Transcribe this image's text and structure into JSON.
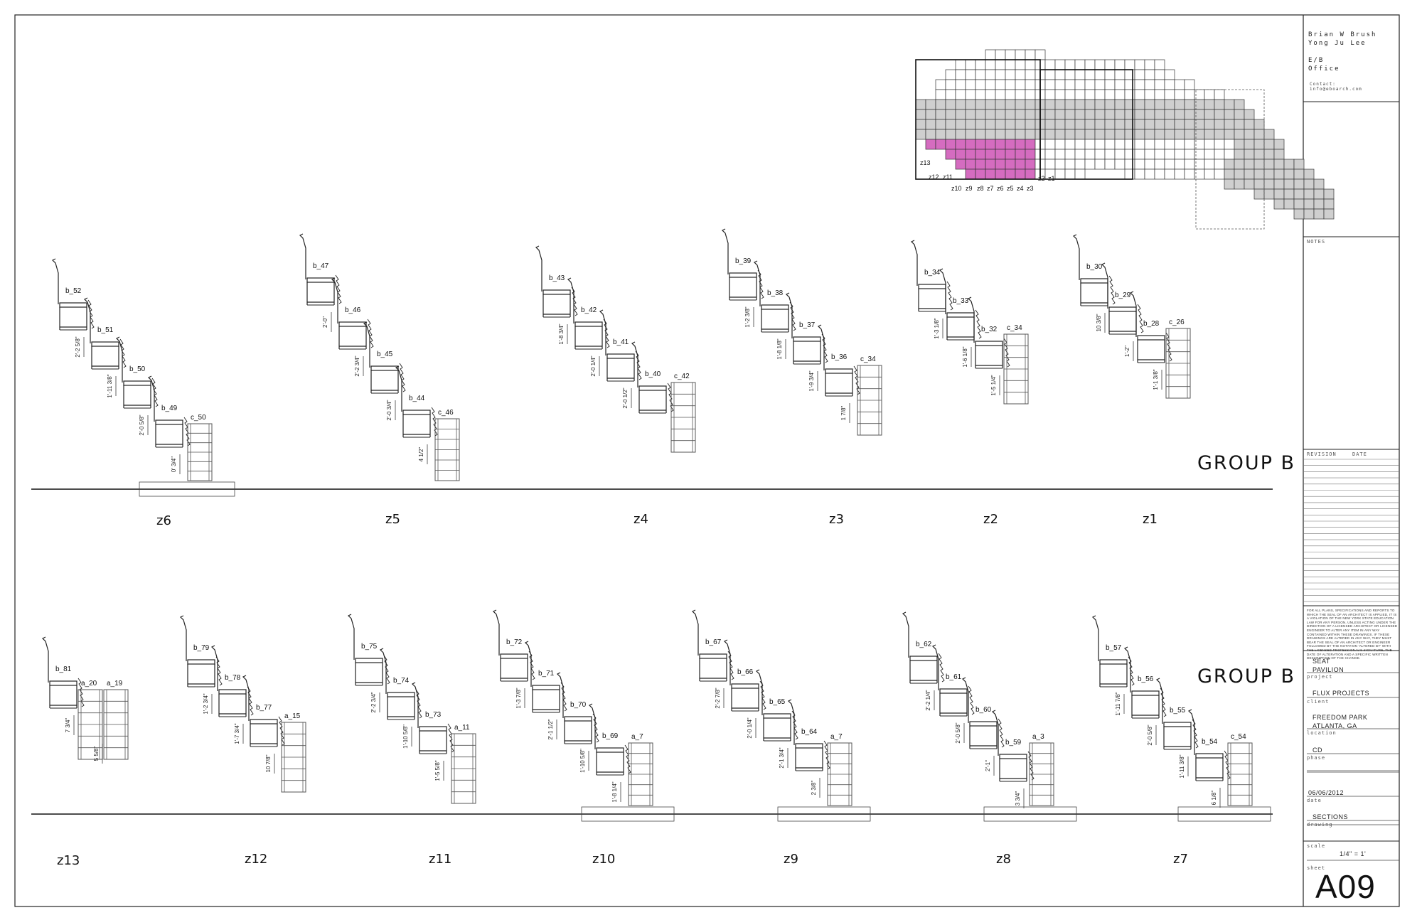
{
  "title_block": {
    "authors": [
      "Brian W Brush",
      "Yong Ju Lee"
    ],
    "office_lines": [
      "E/B",
      "Office"
    ],
    "contact_label": "Contact:",
    "contact_email": "info@eboarch.com",
    "notes_label": "NOTES",
    "revision_label": "REVISION",
    "date_label": "DATE",
    "legal_text": "FOR ALL PLANS, SPECIFICATIONS AND REPORTS TO WHICH THE SEAL OF AN ARCHITECT IS APPLIED, IT IS A VIOLATION OF THE NEW YORK STATE EDUCATION LAW FOR ANY PERSON, UNLESS ACTING UNDER THE DIRECTION OF A LICENSED ARCHITECT OR LICENSED ENGINEER TO ALTER ANY ITEM IN ANY WAY CONTAINED WITHIN THESE DRAWINGS. IF THESE DRAWINGS ARE ALTERED IN ANY WAY, THEY MUST BEAR THE SEAL OF AN ARCHITECT OR ENGINEER FOLLOWED BY THE NOTATION 'ALTERED BY' WITH THE LICENSED PROFESSIONAL'S SIGNATURE, THE DATE OF ALTERATION AND A SPECIFIC WRITTEN DESCRIPTION OF THE CHANGE.",
    "project_lines": [
      "SEAT",
      "PAVILION"
    ],
    "project_label": "project",
    "client": "FLUX PROJECTS",
    "client_label": "client",
    "location_lines": [
      "FREEDOM PARK",
      "ATLANTA, GA"
    ],
    "location_label": "location",
    "phase": "CD",
    "phase_label": "phase",
    "date": "06/06/2012",
    "date_field_label": "date",
    "drawing": "SECTIONS",
    "drawing_label": "drawing",
    "scale_label": "scale",
    "scale": "1/4\" = 1'",
    "sheet_label": "sheet",
    "sheet": "A09"
  },
  "key_plan": {
    "zone_labels": [
      "z13",
      "z12",
      "z11",
      "z10",
      "z9",
      "z8",
      "z7",
      "z6",
      "z5",
      "z4",
      "z3",
      "z2",
      "z1"
    ],
    "highlight_color": "#d56cc0"
  },
  "rows": [
    {
      "group_label": "GROUP B",
      "zones": [
        {
          "zone": "z6",
          "chairs": [
            {
              "id": "b_52",
              "type": "b"
            },
            {
              "id": "b_51",
              "type": "b"
            },
            {
              "id": "b_50",
              "type": "b"
            },
            {
              "id": "b_49",
              "type": "b"
            },
            {
              "id": "c_50",
              "type": "c"
            }
          ],
          "dims": [
            "2'-2 5/8\"",
            "1'-11 3/8\"",
            "2'-0 5/8\"",
            "0' 3/4\""
          ]
        },
        {
          "zone": "z5",
          "chairs": [
            {
              "id": "b_47",
              "type": "b"
            },
            {
              "id": "b_46",
              "type": "b"
            },
            {
              "id": "b_45",
              "type": "b"
            },
            {
              "id": "b_44",
              "type": "b"
            },
            {
              "id": "c_46",
              "type": "c"
            }
          ],
          "dims": [
            "2'-0\"",
            "2'-2 3/4\"",
            "2'-0 3/4\"",
            "4 1/2\""
          ]
        },
        {
          "zone": "z4",
          "chairs": [
            {
              "id": "b_43",
              "type": "b"
            },
            {
              "id": "b_42",
              "type": "b"
            },
            {
              "id": "b_41",
              "type": "b"
            },
            {
              "id": "b_40",
              "type": "b"
            },
            {
              "id": "c_42",
              "type": "c"
            }
          ],
          "dims": [
            "1'-8 3/4\"",
            "2'-0 1/4\"",
            "2'-0 1/2\""
          ]
        },
        {
          "zone": "z3",
          "chairs": [
            {
              "id": "b_39",
              "type": "b"
            },
            {
              "id": "b_38",
              "type": "b"
            },
            {
              "id": "b_37",
              "type": "b"
            },
            {
              "id": "b_36",
              "type": "b"
            },
            {
              "id": "c_34",
              "type": "c"
            }
          ],
          "dims": [
            "1'-2 3/8\"",
            "1'-8 1/8\"",
            "1'-9 3/4\"",
            "1 7/8\""
          ]
        },
        {
          "zone": "z2",
          "chairs": [
            {
              "id": "b_34",
              "type": "b"
            },
            {
              "id": "b_33",
              "type": "b"
            },
            {
              "id": "b_32",
              "type": "b"
            },
            {
              "id": "c_34",
              "type": "c"
            }
          ],
          "dims": [
            "1'-3 1/8\"",
            "1'-6 1/8\"",
            "1'-5 1/4\""
          ]
        },
        {
          "zone": "z1",
          "chairs": [
            {
              "id": "b_30",
              "type": "b"
            },
            {
              "id": "b_29",
              "type": "b"
            },
            {
              "id": "b_28",
              "type": "b"
            },
            {
              "id": "c_26",
              "type": "c"
            }
          ],
          "dims": [
            "10 3/8\"",
            "1'-2\"",
            "1'-1 3/8\""
          ]
        }
      ]
    },
    {
      "group_label": "GROUP B",
      "zones": [
        {
          "zone": "z13",
          "chairs": [
            {
              "id": "b_81",
              "type": "b"
            },
            {
              "id": "a_20",
              "type": "c"
            },
            {
              "id": "a_19",
              "type": "c"
            }
          ],
          "dims": [
            "7 3/4\"",
            "5 5/8\""
          ]
        },
        {
          "zone": "z12",
          "chairs": [
            {
              "id": "b_79",
              "type": "b"
            },
            {
              "id": "b_78",
              "type": "b"
            },
            {
              "id": "b_77",
              "type": "b"
            },
            {
              "id": "a_15",
              "type": "c"
            }
          ],
          "dims": [
            "1'-2 3/4\"",
            "1'-7 3/4\"",
            "10 7/8\""
          ]
        },
        {
          "zone": "z11",
          "chairs": [
            {
              "id": "b_75",
              "type": "b"
            },
            {
              "id": "b_74",
              "type": "b"
            },
            {
              "id": "b_73",
              "type": "b"
            },
            {
              "id": "a_11",
              "type": "c"
            }
          ],
          "dims": [
            "2'-2 3/4\"",
            "1'-10 5/8\"",
            "1'-5 5/8\""
          ]
        },
        {
          "zone": "z10",
          "chairs": [
            {
              "id": "b_72",
              "type": "b"
            },
            {
              "id": "b_71",
              "type": "b"
            },
            {
              "id": "b_70",
              "type": "b"
            },
            {
              "id": "b_69",
              "type": "b"
            },
            {
              "id": "a_7",
              "type": "c"
            }
          ],
          "dims": [
            "1'-3 7/8\"",
            "2'-1 1/2\"",
            "1'-10 5/8\"",
            "1'-8 1/4\""
          ]
        },
        {
          "zone": "z9",
          "chairs": [
            {
              "id": "b_67",
              "type": "b"
            },
            {
              "id": "b_66",
              "type": "b"
            },
            {
              "id": "b_65",
              "type": "b"
            },
            {
              "id": "b_64",
              "type": "b"
            },
            {
              "id": "a_7",
              "type": "c"
            }
          ],
          "dims": [
            "2'-2 7/8\"",
            "2'-0 1/4\"",
            "2'-1 3/4\"",
            "2 3/8\""
          ]
        },
        {
          "zone": "z8",
          "chairs": [
            {
              "id": "b_62",
              "type": "b"
            },
            {
              "id": "b_61",
              "type": "b"
            },
            {
              "id": "b_60",
              "type": "b"
            },
            {
              "id": "b_59",
              "type": "b"
            },
            {
              "id": "a_3",
              "type": "c"
            }
          ],
          "dims": [
            "2'-2 1/4\"",
            "2'-0 5/8\"",
            "2'-1\"",
            "3 3/4\""
          ]
        },
        {
          "zone": "z7",
          "chairs": [
            {
              "id": "b_57",
              "type": "b"
            },
            {
              "id": "b_56",
              "type": "b"
            },
            {
              "id": "b_55",
              "type": "b"
            },
            {
              "id": "b_54",
              "type": "b"
            },
            {
              "id": "c_54",
              "type": "c"
            }
          ],
          "dims": [
            "1'-11 7/8\"",
            "2'-0 5/8\"",
            "1'-11 3/8\"",
            "6 1/8\""
          ]
        }
      ]
    }
  ]
}
